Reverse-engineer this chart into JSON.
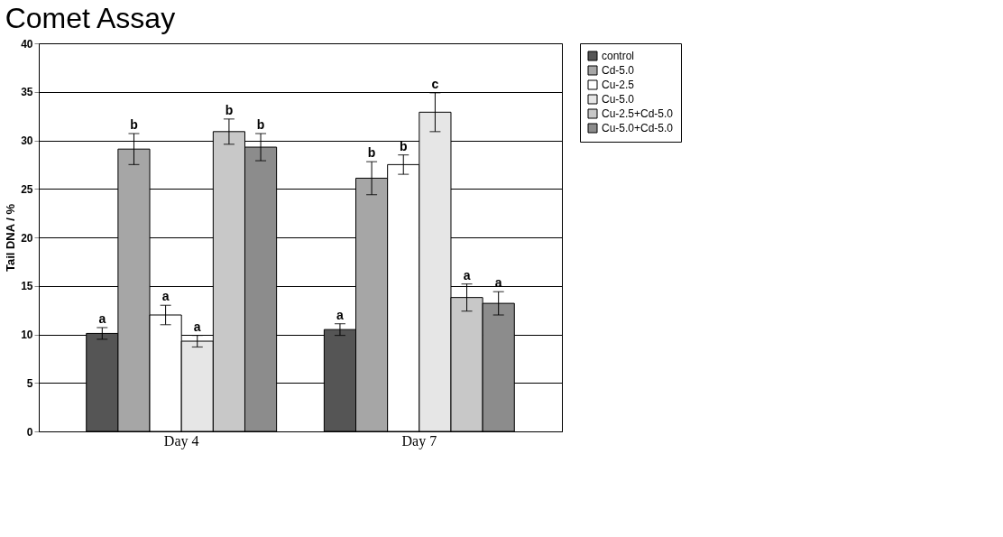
{
  "chart_data": {
    "type": "bar",
    "title": "Comet Assay",
    "ylabel": "Tail DNA / %",
    "categories": [
      "Day 4",
      "Day 7"
    ],
    "ylim": [
      0,
      40
    ],
    "yticks": [
      0,
      5,
      10,
      15,
      20,
      25,
      30,
      35,
      40
    ],
    "grid": "y",
    "legend": "top right",
    "series": [
      {
        "name": "control",
        "color": "#555555",
        "values": [
          10.1,
          10.5
        ],
        "errors": [
          0.6,
          0.6
        ],
        "value_labels": [
          "a",
          "a"
        ]
      },
      {
        "name": "Cd-5.0",
        "color": "#a6a6a6",
        "values": [
          29.1,
          26.1
        ],
        "errors": [
          1.6,
          1.7
        ],
        "value_labels": [
          "b",
          "b"
        ]
      },
      {
        "name": "Cu-2.5",
        "color": "#ffffff",
        "values": [
          12.0,
          27.5
        ],
        "errors": [
          1.0,
          1.0
        ],
        "value_labels": [
          "a",
          "b"
        ]
      },
      {
        "name": "Cu-5.0",
        "color": "#e6e6e6",
        "values": [
          9.3,
          32.9
        ],
        "errors": [
          0.6,
          2.0
        ],
        "value_labels": [
          "a",
          "c"
        ]
      },
      {
        "name": "Cu-2.5+Cd-5.0",
        "color": "#c8c8c8",
        "values": [
          30.9,
          13.8
        ],
        "errors": [
          1.3,
          1.4
        ],
        "value_labels": [
          "b",
          "a"
        ]
      },
      {
        "name": "Cu-5.0+Cd-5.0",
        "color": "#8c8c8c",
        "values": [
          29.3,
          13.2
        ],
        "errors": [
          1.4,
          1.2
        ],
        "value_labels": [
          "b",
          "a"
        ]
      }
    ]
  }
}
